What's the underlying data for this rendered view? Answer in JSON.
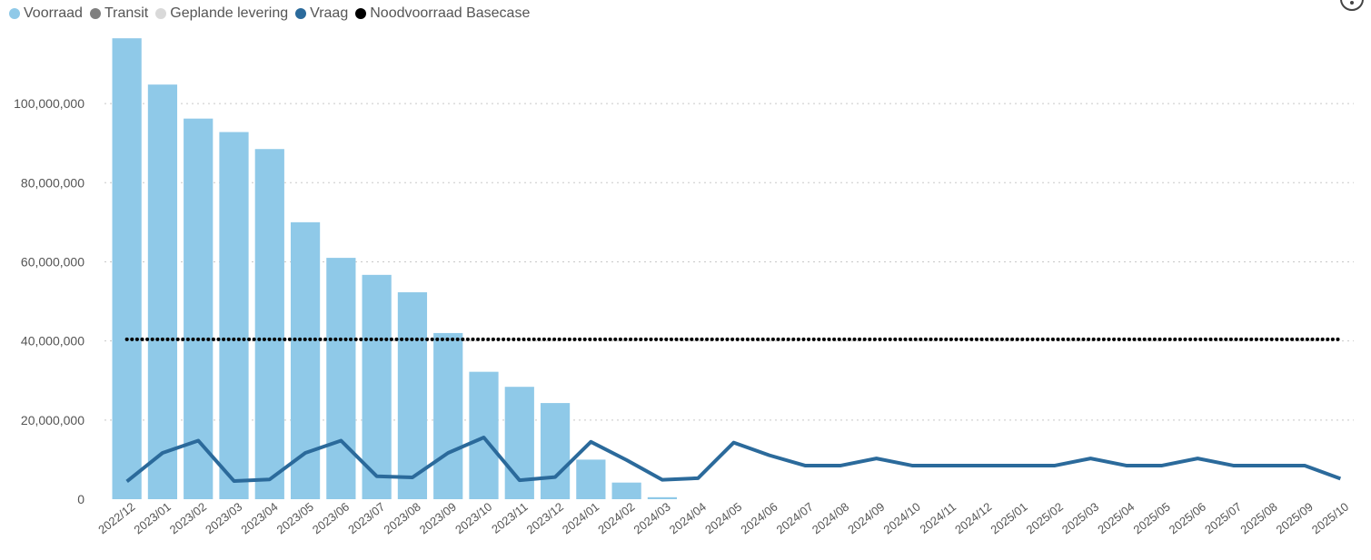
{
  "legend": [
    {
      "label": "Voorraad",
      "color": "#8FC9E8"
    },
    {
      "label": "Transit",
      "color": "#7F7F7F"
    },
    {
      "label": "Geplande levering",
      "color": "#D9D9D9"
    },
    {
      "label": "Vraag",
      "color": "#2B6A9B"
    },
    {
      "label": "Noodvoorraad Basecase",
      "color": "#000000"
    }
  ],
  "chart_data": {
    "type": "bar",
    "categories": [
      "2022/12",
      "2023/01",
      "2023/02",
      "2023/03",
      "2023/04",
      "2023/05",
      "2023/06",
      "2023/07",
      "2023/08",
      "2023/09",
      "2023/10",
      "2023/11",
      "2023/12",
      "2024/01",
      "2024/02",
      "2024/03",
      "2024/04",
      "2024/05",
      "2024/06",
      "2024/07",
      "2024/08",
      "2024/09",
      "2024/10",
      "2024/11",
      "2024/12",
      "2025/01",
      "2025/02",
      "2025/03",
      "2025/04",
      "2025/05",
      "2025/06",
      "2025/07",
      "2025/08",
      "2025/09",
      "2025/10"
    ],
    "yticks": [
      "0",
      "20,000,000",
      "40,000,000",
      "60,000,000",
      "80,000,000",
      "100,000,000"
    ],
    "ytick_values": [
      0,
      20000000,
      40000000,
      60000000,
      80000000,
      100000000
    ],
    "ylim": [
      0,
      117000000
    ],
    "grid": true,
    "legend_position": "top-left",
    "series": [
      {
        "name": "Voorraad",
        "type": "bar",
        "color": "#8FC9E8",
        "values": [
          116500000,
          104800000,
          96200000,
          92800000,
          88500000,
          70000000,
          61000000,
          56700000,
          52300000,
          42000000,
          32200000,
          28400000,
          24300000,
          10000000,
          4200000,
          500000,
          0,
          0,
          0,
          0,
          0,
          0,
          0,
          0,
          0,
          0,
          0,
          0,
          0,
          0,
          0,
          0,
          0,
          0,
          0
        ]
      },
      {
        "name": "Vraag",
        "type": "line",
        "color": "#2B6A9B",
        "values": [
          4500000,
          11700000,
          14800000,
          4600000,
          5000000,
          11700000,
          14800000,
          5800000,
          5500000,
          11700000,
          15600000,
          4800000,
          5600000,
          14500000,
          9900000,
          4900000,
          5300000,
          14300000,
          11100000,
          8500000,
          8500000,
          10300000,
          8500000,
          8500000,
          8500000,
          8500000,
          8500000,
          10300000,
          8500000,
          8500000,
          10300000,
          8500000,
          8500000,
          8500000,
          5200000
        ]
      },
      {
        "name": "Noodvoorraad Basecase",
        "type": "line",
        "style": "dotted",
        "color": "#000000",
        "values": [
          40400000,
          40400000,
          40400000,
          40400000,
          40400000,
          40400000,
          40400000,
          40400000,
          40400000,
          40400000,
          40400000,
          40400000,
          40400000,
          40400000,
          40400000,
          40400000,
          40400000,
          40400000,
          40400000,
          40400000,
          40400000,
          40400000,
          40400000,
          40400000,
          40400000,
          40400000,
          40400000,
          40400000,
          40400000,
          40400000,
          40400000,
          40400000,
          40400000,
          40400000,
          40400000
        ]
      }
    ]
  }
}
